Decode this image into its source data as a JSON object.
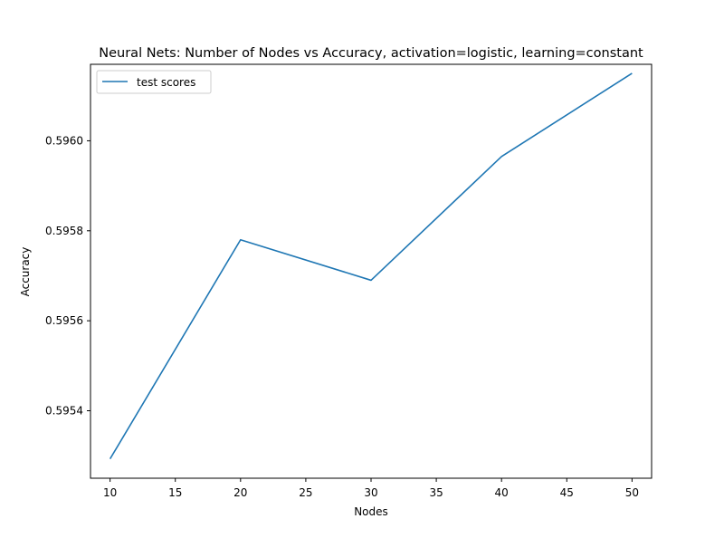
{
  "chart_data": {
    "type": "line",
    "title": "Neural Nets: Number of Nodes vs Accuracy, activation=logistic, learning=constant",
    "xlabel": "Nodes",
    "ylabel": "Accuracy",
    "xlim": [
      8.5,
      51.5
    ],
    "ylim": [
      0.59525,
      0.59617
    ],
    "xticks": [
      10,
      15,
      20,
      25,
      30,
      35,
      40,
      45,
      50
    ],
    "yticks": [
      0.5954,
      0.5956,
      0.5958,
      0.596
    ],
    "ytick_labels": [
      "0.5954",
      "0.5956",
      "0.5958",
      "0.5960"
    ],
    "grid": false,
    "legend_position": "top-left",
    "series": [
      {
        "name": "test scores",
        "color": "#1f77b4",
        "x": [
          10,
          20,
          30,
          40,
          50
        ],
        "y": [
          0.595293,
          0.59578,
          0.59569,
          0.595965,
          0.59615
        ]
      }
    ]
  }
}
